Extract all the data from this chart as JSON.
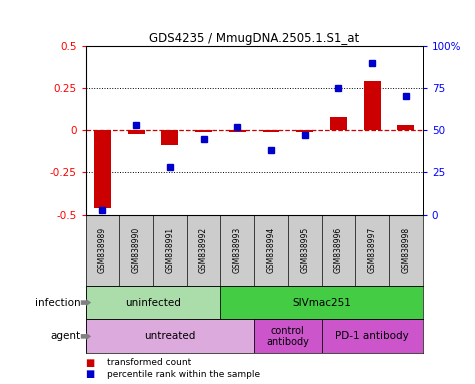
{
  "title": "GDS4235 / MmugDNA.2505.1.S1_at",
  "samples": [
    "GSM838989",
    "GSM838990",
    "GSM838991",
    "GSM838992",
    "GSM838993",
    "GSM838994",
    "GSM838995",
    "GSM838996",
    "GSM838997",
    "GSM838998"
  ],
  "transformed_count": [
    -0.46,
    -0.02,
    -0.09,
    -0.01,
    -0.01,
    -0.01,
    -0.01,
    0.08,
    0.29,
    0.03
  ],
  "percentile_rank": [
    3,
    53,
    28,
    45,
    52,
    38,
    47,
    75,
    90,
    70
  ],
  "ylim_left": [
    -0.5,
    0.5
  ],
  "ylim_right": [
    0,
    100
  ],
  "yticks_left": [
    -0.5,
    -0.25,
    0,
    0.25,
    0.5
  ],
  "yticks_right": [
    0,
    25,
    50,
    75,
    100
  ],
  "yticklabels_right": [
    "0",
    "25",
    "50",
    "75",
    "100%"
  ],
  "bar_color": "#cc0000",
  "dot_color": "#0000cc",
  "zero_line_color": "#cc0000",
  "infection_groups": [
    {
      "label": "uninfected",
      "start": 0,
      "end": 4,
      "color": "#aaddaa"
    },
    {
      "label": "SIVmac251",
      "start": 4,
      "end": 10,
      "color": "#44cc44"
    }
  ],
  "agent_groups": [
    {
      "label": "untreated",
      "start": 0,
      "end": 5,
      "color": "#ddaadd"
    },
    {
      "label": "control\nantibody",
      "start": 5,
      "end": 7,
      "color": "#cc44cc"
    },
    {
      "label": "PD-1 antibody",
      "start": 7,
      "end": 10,
      "color": "#cc44cc"
    }
  ],
  "infection_label": "infection",
  "agent_label": "agent",
  "sample_bg_color": "#cccccc",
  "legend_tc_label": "transformed count",
  "legend_pr_label": "percentile rank within the sample"
}
